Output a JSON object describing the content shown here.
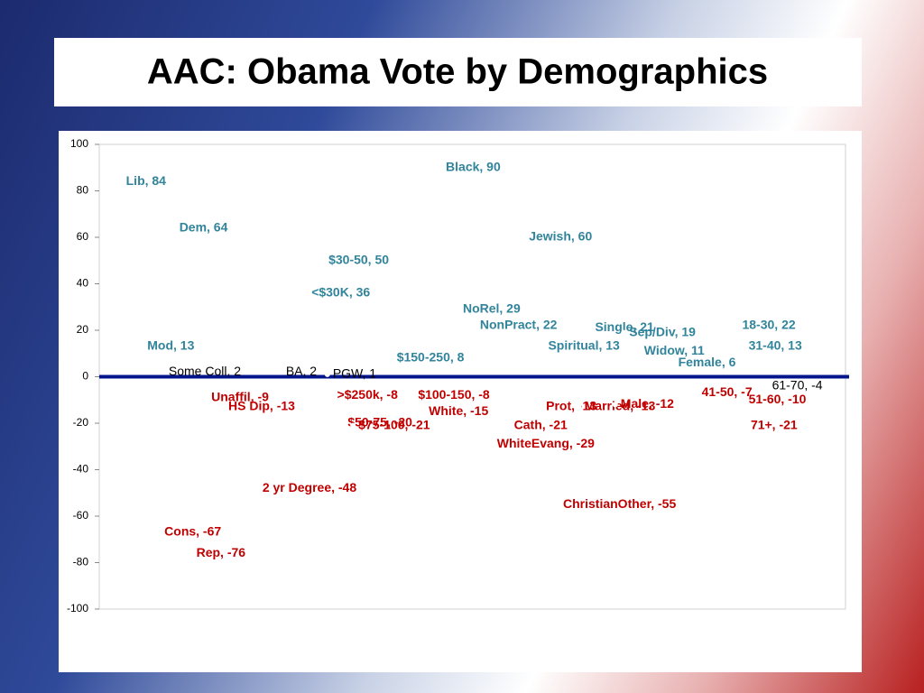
{
  "chart_data": {
    "type": "scatter",
    "title": "AAC: Obama Vote by Demographics",
    "xlim": [
      0,
      35
    ],
    "ylim": [
      -100,
      100
    ],
    "yticks": [
      -100,
      -80,
      -60,
      -40,
      -20,
      0,
      20,
      40,
      60,
      80,
      100
    ],
    "x": [
      1,
      3.5,
      2,
      3,
      8.5,
      10.7,
      5,
      5.8,
      2.8,
      4.3,
      7.4,
      10.5,
      9.7,
      10.9,
      11.4,
      11.9,
      13.7,
      14.7,
      15.2,
      16,
      16.8,
      17.6,
      19.9,
      19.2,
      18.4,
      20.8,
      20.7,
      21.5,
      23,
      22.5,
      24.2,
      24.6,
      25.3,
      26.9,
      29.9,
      30.2,
      28,
      30.2,
      30.3,
      31.3
    ],
    "values": [
      84,
      64,
      13,
      2,
      2,
      1,
      -9,
      -13,
      -67,
      -76,
      -48,
      50,
      36,
      -8,
      -20,
      -21,
      8,
      -8,
      -15,
      90,
      29,
      22,
      60,
      -21,
      -29,
      13,
      -13,
      -55,
      21,
      -13,
      -12,
      19,
      11,
      6,
      22,
      13,
      -7,
      -10,
      -21,
      -4
    ],
    "value_labels": [
      "Lib, 84",
      "Dem, 64",
      "Mod, 13",
      "Some Coll, 2",
      "BA, 2",
      "PGW, 1",
      "Unaffil, -9",
      "HS Dip, -13",
      "Cons, -67",
      "Rep, -76",
      "2 yr Degree, -48",
      "$30-50, 50",
      "<$30K, 36",
      ">$250k, -8",
      "$50-75, -20",
      "$75-100, -21",
      "$150-250, 8",
      "$100-150, -8",
      "White, -15",
      "Black, 90",
      "NoRel, 29",
      "NonPract, 22",
      "Jewish, 60",
      "Cath, -21",
      "WhiteEvang, -29",
      "Spiritual, 13",
      "Prot, -13",
      "ChristianOther, -55",
      "Single, 21",
      "Married, -13",
      "Male, -12",
      "Sep/Div, 19",
      "Widow, 11",
      "Female, 6",
      "18-30, 22",
      "31-40, 13",
      "41-50, -7",
      "51-60, -10",
      "71+, -21",
      "61-70, -4"
    ],
    "colors": [
      "#31849b",
      "#31849b",
      "#31849b",
      "#000000",
      "#000000",
      "#000000",
      "#c00000",
      "#c00000",
      "#c00000",
      "#c00000",
      "#c00000",
      "#31849b",
      "#31849b",
      "#c00000",
      "#c00000",
      "#c00000",
      "#31849b",
      "#c00000",
      "#c00000",
      "#31849b",
      "#31849b",
      "#31849b",
      "#31849b",
      "#c00000",
      "#c00000",
      "#31849b",
      "#c00000",
      "#c00000",
      "#31849b",
      "#c00000",
      "#c00000",
      "#31849b",
      "#31849b",
      "#31849b",
      "#31849b",
      "#31849b",
      "#c00000",
      "#c00000",
      "#c00000",
      "#000000"
    ],
    "zero_line_color": "#00148c"
  }
}
